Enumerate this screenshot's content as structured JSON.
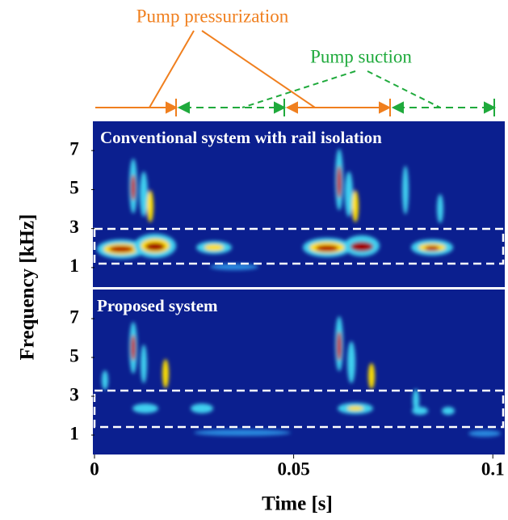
{
  "figure": {
    "ylabel": "Frequency [kHz]",
    "annotations": [
      "Pump pressurization",
      "Pump suction"
    ]
  },
  "chart_data": [
    {
      "type": "spectrogram",
      "title": "Conventional system with rail isolation",
      "ylim": [
        0,
        8.5
      ],
      "yticks": [
        1,
        3,
        5,
        7
      ]
    },
    {
      "type": "spectrogram",
      "title": "Proposed system",
      "xlabel": "Time [s]",
      "xlim": [
        0,
        0.103
      ],
      "xticks": [
        0,
        0.05,
        0.1
      ],
      "ylim": [
        0,
        8.5
      ],
      "yticks": [
        1,
        3,
        5,
        7
      ]
    }
  ]
}
